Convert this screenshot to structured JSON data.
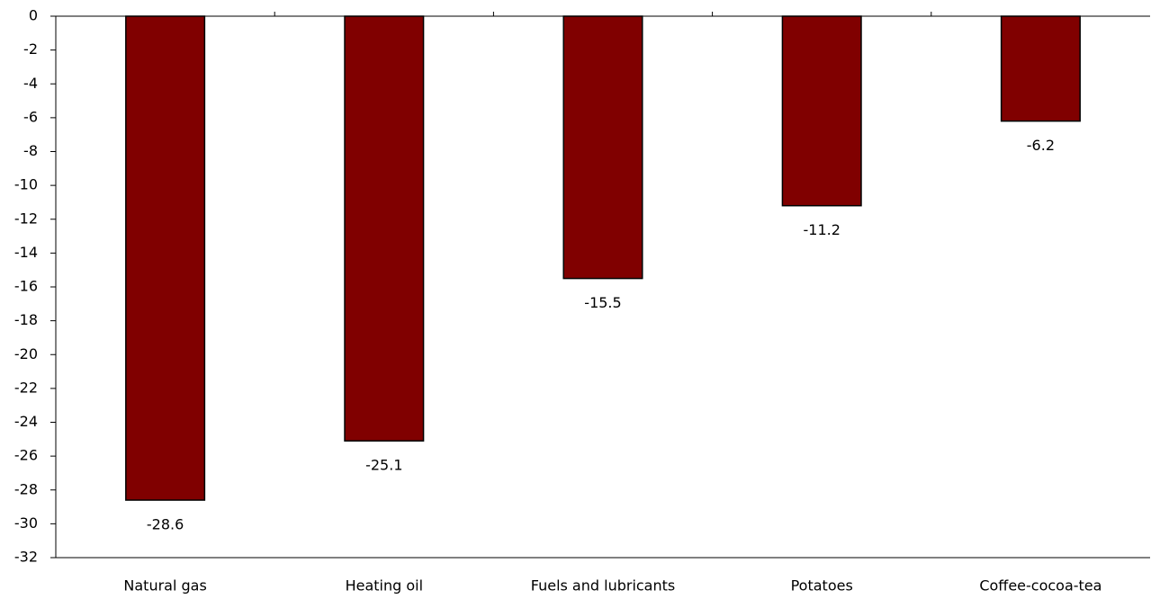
{
  "chart_data": {
    "type": "bar",
    "categories": [
      "Natural gas",
      "Heating oil",
      "Fuels and lubricants",
      "Potatoes",
      "Coffee-cocoa-tea"
    ],
    "values": [
      -28.6,
      -25.1,
      -15.5,
      -11.2,
      -6.2
    ],
    "color": "#800000",
    "ylim": [
      -32,
      0
    ],
    "yticks": [
      0,
      -2,
      -4,
      -6,
      -8,
      -10,
      -12,
      -14,
      -16,
      -18,
      -20,
      -22,
      -24,
      -26,
      -28,
      -30,
      -32
    ],
    "grid": false
  }
}
